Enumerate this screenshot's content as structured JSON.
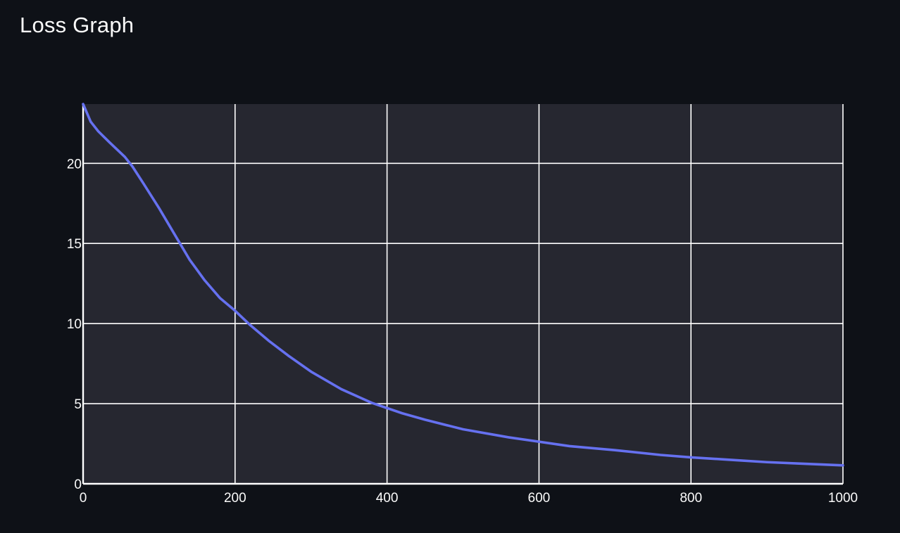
{
  "header": {
    "title": "Loss Graph"
  },
  "colors": {
    "background": "#0e1117",
    "plot_background": "#262730",
    "grid": "#ffffff",
    "line": "#6671f0",
    "text": "#fafafa"
  },
  "chart_data": {
    "type": "line",
    "title": "",
    "xlabel": "",
    "ylabel": "",
    "xlim": [
      0,
      1000
    ],
    "ylim": [
      0,
      23.7
    ],
    "x_ticks": [
      0,
      200,
      400,
      600,
      800,
      1000
    ],
    "y_ticks": [
      0,
      5,
      10,
      15,
      20
    ],
    "grid": true,
    "series": [
      {
        "x": [
          0,
          10,
          20,
          35,
          55,
          65,
          80,
          100,
          120,
          140,
          160,
          180,
          200,
          220,
          245,
          270,
          300,
          340,
          380,
          420,
          450,
          500,
          560,
          640,
          700,
          760,
          800,
          850,
          900,
          950,
          1000
        ],
        "y": [
          23.7,
          22.6,
          22.0,
          21.3,
          20.4,
          19.8,
          18.7,
          17.2,
          15.6,
          14.0,
          12.7,
          11.6,
          10.8,
          9.9,
          8.9,
          8.0,
          7.0,
          5.9,
          5.05,
          4.4,
          4.0,
          3.4,
          2.9,
          2.35,
          2.1,
          1.8,
          1.65,
          1.5,
          1.35,
          1.25,
          1.15
        ]
      }
    ]
  }
}
